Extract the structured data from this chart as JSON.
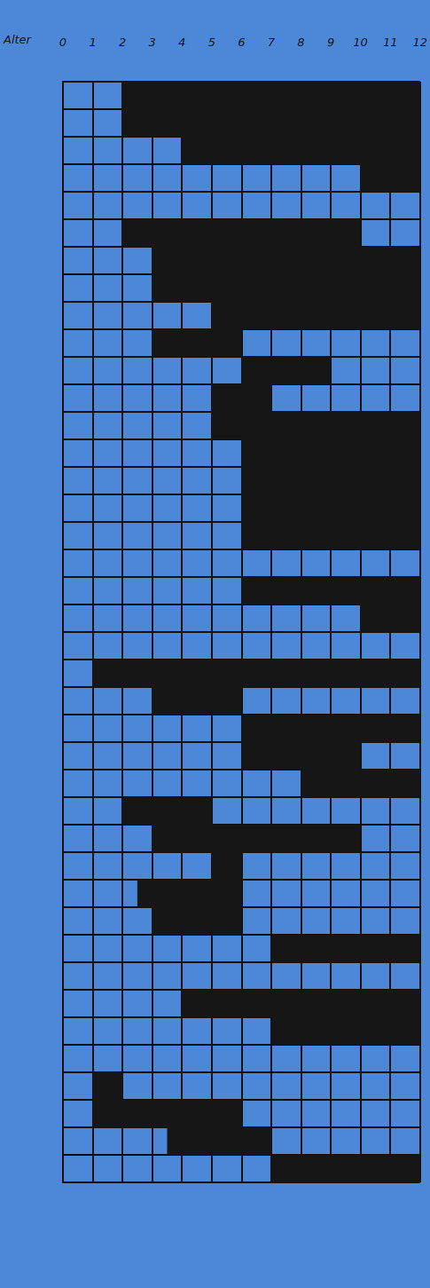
{
  "chart_data": {
    "type": "bar",
    "orientation": "horizontal",
    "xlabel": "Alter",
    "categories": [
      null,
      null,
      null,
      null,
      null,
      null,
      null,
      null,
      null,
      null,
      null,
      null,
      null,
      null,
      null,
      null,
      null,
      null,
      null,
      null,
      null,
      null,
      null,
      null,
      null,
      null,
      null,
      null,
      null,
      null,
      null,
      null,
      null,
      null,
      null,
      null,
      null,
      null,
      null,
      null
    ],
    "base": [
      2,
      2,
      4,
      10,
      null,
      2,
      3,
      3,
      5,
      3,
      6,
      5,
      5,
      6,
      6,
      6,
      6,
      null,
      6,
      10,
      null,
      1,
      3,
      6,
      6,
      8,
      2,
      3,
      5,
      2.5,
      3,
      7,
      null,
      4,
      7,
      null,
      1,
      1,
      3.5,
      7
    ],
    "values": [
      10,
      10,
      8,
      2,
      null,
      8,
      9,
      9,
      7,
      3,
      3,
      2,
      7,
      6,
      6,
      6,
      6,
      null,
      6,
      2,
      null,
      11,
      3,
      6,
      4,
      4,
      3,
      7,
      1,
      3.5,
      3,
      5,
      null,
      8,
      5,
      null,
      1,
      5,
      3.5,
      5
    ],
    "color": "#161616",
    "xlim": [
      0,
      12
    ],
    "xticks": [
      0,
      1,
      2,
      3,
      4,
      5,
      6,
      7,
      8,
      9,
      10,
      11,
      12
    ],
    "grid": true
  }
}
